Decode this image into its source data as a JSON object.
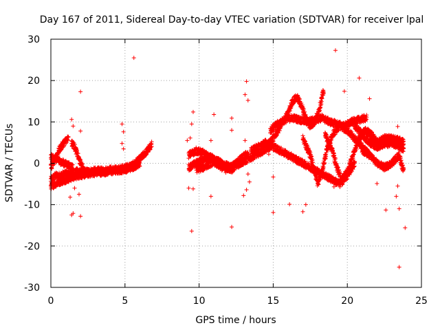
{
  "chart_data": {
    "type": "scatter",
    "title": "Day 167 of 2011, Sidereal Day-to-day VTEC variation (SDTVAR) for receiver lpal",
    "xlabel": "GPS time / hours",
    "ylabel": "SDTVAR / TECUs",
    "xlim": [
      0,
      25
    ],
    "ylim": [
      -30,
      30
    ],
    "xticks": [
      0,
      5,
      10,
      15,
      20,
      25
    ],
    "yticks": [
      -30,
      -20,
      -10,
      0,
      10,
      20,
      30
    ],
    "grid": true,
    "marker": "+",
    "color": "#ff0000",
    "series": [
      {
        "name": "SDTVAR",
        "bands": [
          {
            "x": [
              0.0,
              0.3,
              0.6,
              1.0,
              1.3,
              1.6,
              2.0,
              2.5,
              3.0,
              3.5,
              4.0,
              4.5,
              5.0,
              5.5,
              6.0,
              6.5,
              6.8
            ],
            "y": [
              -4,
              -3,
              -3,
              -2.5,
              -2.5,
              -2,
              -2,
              -2,
              -1.8,
              -1.8,
              -1.5,
              -1.5,
              -1,
              -0.5,
              1,
              3,
              4.5
            ]
          },
          {
            "x": [
              0.0,
              0.3,
              0.6,
              1.0,
              1.4,
              1.8,
              2.2,
              2.6,
              3.0,
              3.5,
              4.0,
              4.5,
              5.0,
              5.5,
              6.0
            ],
            "y": [
              -5.5,
              -5,
              -4.5,
              -4,
              -3.5,
              -3,
              -2.8,
              -2.5,
              -2.3,
              -2.2,
              -2,
              -1.8,
              -1.5,
              -1,
              0
            ]
          },
          {
            "x": [
              0.0,
              0.2,
              0.4,
              0.6,
              0.8,
              1.0,
              1.2
            ],
            "y": [
              -1,
              0.5,
              2,
              3.5,
              4.5,
              5.5,
              6
            ]
          },
          {
            "x": [
              0.0,
              0.3,
              0.6,
              0.9,
              1.2,
              1.5
            ],
            "y": [
              1.5,
              1,
              0.5,
              0,
              -0.5,
              -1
            ]
          },
          {
            "x": [
              1.4,
              1.6,
              1.8,
              2.0,
              2.2,
              2.4
            ],
            "y": [
              5,
              4,
              2,
              0,
              -1.5,
              -2.5
            ]
          },
          {
            "x": [
              9.3,
              9.8,
              10.3,
              10.8,
              11.3,
              11.8,
              12.3,
              12.8,
              13.3,
              13.8,
              14.3,
              14.8
            ],
            "y": [
              -1,
              0,
              1,
              1.5,
              0.5,
              -0.5,
              -1,
              0,
              1,
              2,
              3,
              4
            ]
          },
          {
            "x": [
              9.3,
              9.8,
              10.3,
              10.8,
              11.3,
              11.8,
              12.3,
              12.8,
              13.3
            ],
            "y": [
              2,
              3,
              2.5,
              1,
              -0.5,
              -1.5,
              -0.5,
              1,
              2.5
            ]
          },
          {
            "x": [
              9.8,
              10.3,
              10.8,
              11.3,
              11.8,
              12.3
            ],
            "y": [
              -1.5,
              -1,
              0,
              0.5,
              -1,
              -1.5
            ]
          },
          {
            "x": [
              14.8,
              15.3,
              15.8,
              16.3,
              16.8,
              17.3,
              17.8,
              18.3,
              18.8,
              19.3,
              19.8,
              20.3,
              20.8,
              21.3
            ],
            "y": [
              8,
              9.5,
              10.5,
              11,
              10.5,
              10,
              10.5,
              11,
              10,
              9.5,
              9,
              10,
              10.5,
              11
            ]
          },
          {
            "x": [
              14.5,
              15.0,
              15.5,
              16.0,
              16.3,
              16.6,
              16.9,
              17.2,
              17.5,
              17.8,
              18.1,
              18.4
            ],
            "y": [
              4,
              6,
              9,
              12,
              15,
              16,
              14,
              11,
              9,
              10,
              13,
              17.5
            ]
          },
          {
            "x": [
              13.5,
              14.0,
              14.5,
              15.0,
              15.5,
              16.0,
              16.5,
              17.0,
              17.5,
              18.0,
              18.5,
              19.0,
              19.5,
              20.0,
              20.5
            ],
            "y": [
              3,
              4,
              5,
              4,
              3,
              2,
              1,
              0,
              -1,
              -2,
              -3,
              -4,
              -5,
              -3,
              0
            ]
          },
          {
            "x": [
              17.0,
              17.5,
              17.8,
              18.0,
              18.3,
              18.6,
              19.0,
              19.5,
              20.0,
              20.5,
              21.0,
              21.5
            ],
            "y": [
              6,
              2,
              -2,
              -5,
              -2,
              3,
              7,
              9,
              8,
              6,
              4,
              2
            ]
          },
          {
            "x": [
              18.5,
              19.0,
              19.3,
              19.6,
              20.0,
              20.4,
              20.8,
              21.2,
              21.6,
              22.0
            ],
            "y": [
              7,
              3,
              -1,
              -4,
              -2,
              2,
              6,
              8,
              7,
              5
            ]
          },
          {
            "x": [
              20.5,
              21.0,
              21.5,
              22.0,
              22.5,
              23.0,
              23.5,
              23.8
            ],
            "y": [
              9,
              7,
              5,
              4,
              4.5,
              5,
              4,
              3
            ]
          },
          {
            "x": [
              21.0,
              21.5,
              22.0,
              22.5,
              23.0,
              23.5,
              23.8
            ],
            "y": [
              3,
              2,
              0,
              -1,
              0,
              2,
              -2
            ]
          },
          {
            "x": [
              21.5,
              22.0,
              22.5,
              23.0,
              23.5,
              23.8
            ],
            "y": [
              6,
              5,
              6,
              6,
              5.5,
              5
            ]
          }
        ],
        "outliers": [
          [
            5.6,
            25.5
          ],
          [
            2.0,
            17.3
          ],
          [
            1.4,
            10.6
          ],
          [
            1.5,
            9.0
          ],
          [
            2.0,
            7.8
          ],
          [
            4.8,
            9.5
          ],
          [
            4.9,
            7.6
          ],
          [
            4.8,
            4.8
          ],
          [
            4.9,
            3.5
          ],
          [
            1.5,
            -12.1
          ],
          [
            1.4,
            -12.5
          ],
          [
            2.0,
            -12.8
          ],
          [
            1.3,
            -8.2
          ],
          [
            1.9,
            -7.5
          ],
          [
            1.6,
            -6.0
          ],
          [
            9.6,
            12.4
          ],
          [
            9.5,
            9.5
          ],
          [
            9.4,
            6.1
          ],
          [
            9.2,
            5.5
          ],
          [
            11.0,
            11.8
          ],
          [
            10.8,
            5.5
          ],
          [
            9.5,
            -16.4
          ],
          [
            9.3,
            -6.0
          ],
          [
            9.6,
            -6.2
          ],
          [
            10.8,
            -8.0
          ],
          [
            12.2,
            -15.4
          ],
          [
            12.2,
            8.0
          ],
          [
            12.2,
            10.9
          ],
          [
            13.2,
            19.8
          ],
          [
            13.1,
            16.6
          ],
          [
            13.3,
            15.2
          ],
          [
            13.0,
            -7.8
          ],
          [
            13.2,
            -6.4
          ],
          [
            13.4,
            -4.5
          ],
          [
            13.3,
            -2.6
          ],
          [
            13.1,
            5.5
          ],
          [
            15.0,
            -11.9
          ],
          [
            15.0,
            -3.3
          ],
          [
            16.1,
            -9.9
          ],
          [
            17.0,
            -11.7
          ],
          [
            17.2,
            -10.0
          ],
          [
            19.2,
            27.3
          ],
          [
            19.8,
            17.4
          ],
          [
            20.8,
            20.6
          ],
          [
            21.5,
            15.6
          ],
          [
            22.0,
            -4.9
          ],
          [
            22.6,
            -11.3
          ],
          [
            23.4,
            8.9
          ],
          [
            23.5,
            -11.0
          ],
          [
            23.5,
            -25.1
          ],
          [
            23.9,
            -15.6
          ],
          [
            23.3,
            -8.0
          ],
          [
            23.4,
            -5.5
          ],
          [
            19.1,
            -5.7
          ],
          [
            17.1,
            0.3
          ],
          [
            15.8,
            3.0
          ],
          [
            14.7,
            2.2
          ]
        ]
      }
    ]
  }
}
